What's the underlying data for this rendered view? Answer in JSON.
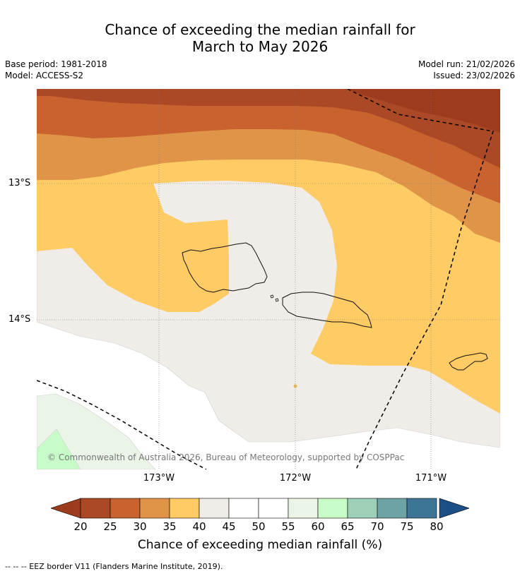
{
  "title": {
    "line1": "Chance of exceeding the median rainfall for",
    "line2": "March to May 2026"
  },
  "meta": {
    "base_period": "Base period: 1981-2018",
    "model": "Model: ACCESS-S2",
    "model_run": "Model run: 21/02/2026",
    "issued": "Issued: 23/02/2026"
  },
  "axes": {
    "lat_labels": [
      "13°S",
      "14°S"
    ],
    "lon_labels": [
      "173°W",
      "172°W",
      "171°W"
    ]
  },
  "copyright": "© Commonwealth of Australia 2026, Bureau of Meteorology, supported by COSPPac",
  "colorbar": {
    "ticks": [
      "20",
      "25",
      "30",
      "35",
      "40",
      "45",
      "50",
      "55",
      "60",
      "65",
      "70",
      "75",
      "80"
    ],
    "title": "Chance of exceeding median rainfall (%)",
    "colors": {
      "under": "#9c3b1e",
      "c20_25": "#ab4826",
      "c25_30": "#c9622f",
      "c30_35": "#e09448",
      "c35_40": "#fecb65",
      "c40_45": "#f0ece7",
      "c45_50": "#ffffff",
      "c50_55": "#ffffff",
      "c55_60": "#eaf5e8",
      "c60_65": "#c7fbc7",
      "c65_70": "#9dd0b7",
      "c70_75": "#6ea3a6",
      "c75_80": "#3d7596",
      "over": "#1c4f86"
    }
  },
  "footnote": "--  --  -- EEZ border V11 (Flanders Marine Institute, 2019)."
}
